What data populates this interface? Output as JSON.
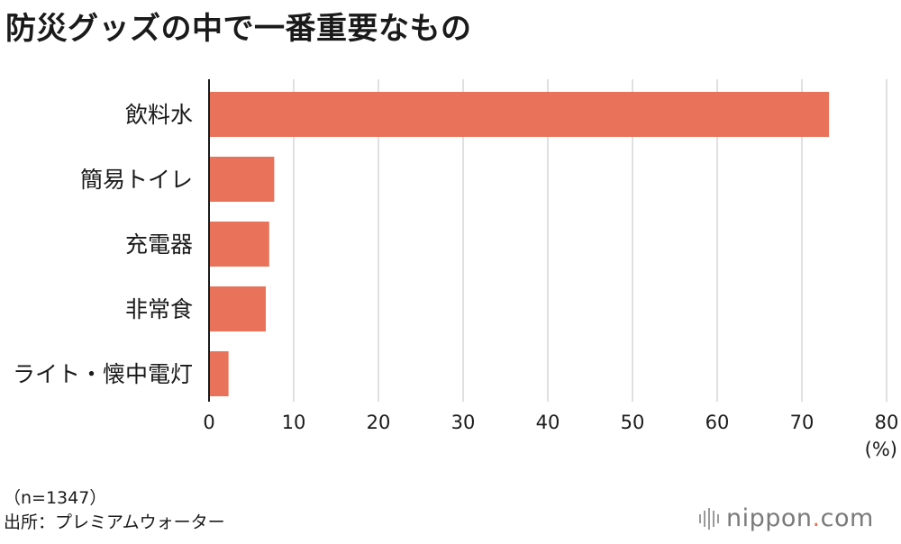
{
  "title": "防災グッズの中で一番重要なもの",
  "notes": {
    "sample": "（n=1347）",
    "source": "出所：プレミアムウォーター"
  },
  "logo": {
    "name": "nippon",
    "dot": ".",
    "suffix": "com"
  },
  "colors": {
    "bar": "#e8725a",
    "grid": "#cccccc",
    "axis": "#1a1a1a"
  },
  "chart_data": {
    "type": "bar",
    "orientation": "horizontal",
    "title": "防災グッズの中で一番重要なもの",
    "categories": [
      "飲料水",
      "簡易トイレ",
      "充電器",
      "非常食",
      "ライト・懐中電灯"
    ],
    "values": [
      73.2,
      7.7,
      7.1,
      6.7,
      2.3
    ],
    "xlim": [
      0,
      80
    ],
    "xticks": [
      0,
      10,
      20,
      30,
      40,
      50,
      60,
      70,
      80
    ],
    "xunit": "(%)",
    "grid": true
  }
}
